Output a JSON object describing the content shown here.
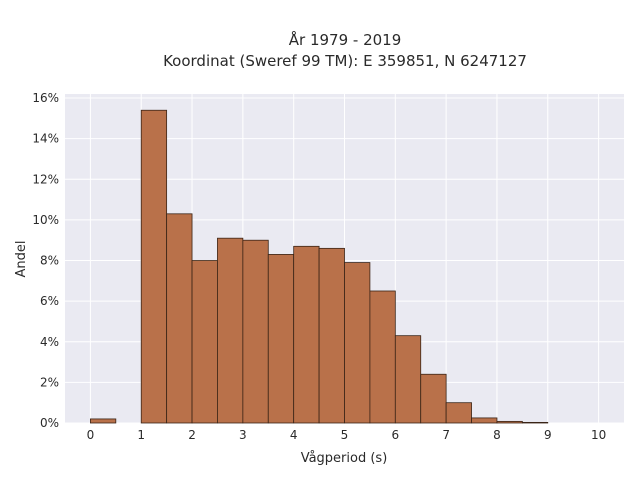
{
  "chart_data": {
    "type": "bar",
    "title_line1": "År 1979 - 2019",
    "title_line2": "Koordinat (Sweref 99 TM): E 359851, N 6247127",
    "xlabel": "Vågperiod (s)",
    "ylabel": "Andel",
    "xlim": [
      -0.5,
      10.5
    ],
    "ylim": [
      0,
      16.2
    ],
    "x_ticks": [
      0,
      1,
      2,
      3,
      4,
      5,
      6,
      7,
      8,
      9,
      10
    ],
    "y_ticks": [
      0,
      2,
      4,
      6,
      8,
      10,
      12,
      14,
      16
    ],
    "y_tick_labels": [
      "0%",
      "2%",
      "4%",
      "6%",
      "8%",
      "10%",
      "12%",
      "14%",
      "16%"
    ],
    "bin_width": 0.5,
    "bins": [
      {
        "start": 0.0,
        "value": 0.2
      },
      {
        "start": 1.0,
        "value": 15.4
      },
      {
        "start": 1.5,
        "value": 10.3
      },
      {
        "start": 2.0,
        "value": 8.0
      },
      {
        "start": 2.5,
        "value": 9.1
      },
      {
        "start": 3.0,
        "value": 9.0
      },
      {
        "start": 3.5,
        "value": 8.3
      },
      {
        "start": 4.0,
        "value": 8.7
      },
      {
        "start": 4.5,
        "value": 8.6
      },
      {
        "start": 5.0,
        "value": 7.9
      },
      {
        "start": 5.5,
        "value": 6.5
      },
      {
        "start": 6.0,
        "value": 4.3
      },
      {
        "start": 6.5,
        "value": 2.4
      },
      {
        "start": 7.0,
        "value": 1.0
      },
      {
        "start": 7.5,
        "value": 0.25
      },
      {
        "start": 8.0,
        "value": 0.08
      },
      {
        "start": 8.5,
        "value": 0.03
      }
    ],
    "grid": true,
    "colors": {
      "bar_fill": "#b9714a",
      "bar_edge": "#3a2416",
      "plot_bg": "#eaeaf2",
      "grid": "#ffffff"
    }
  }
}
